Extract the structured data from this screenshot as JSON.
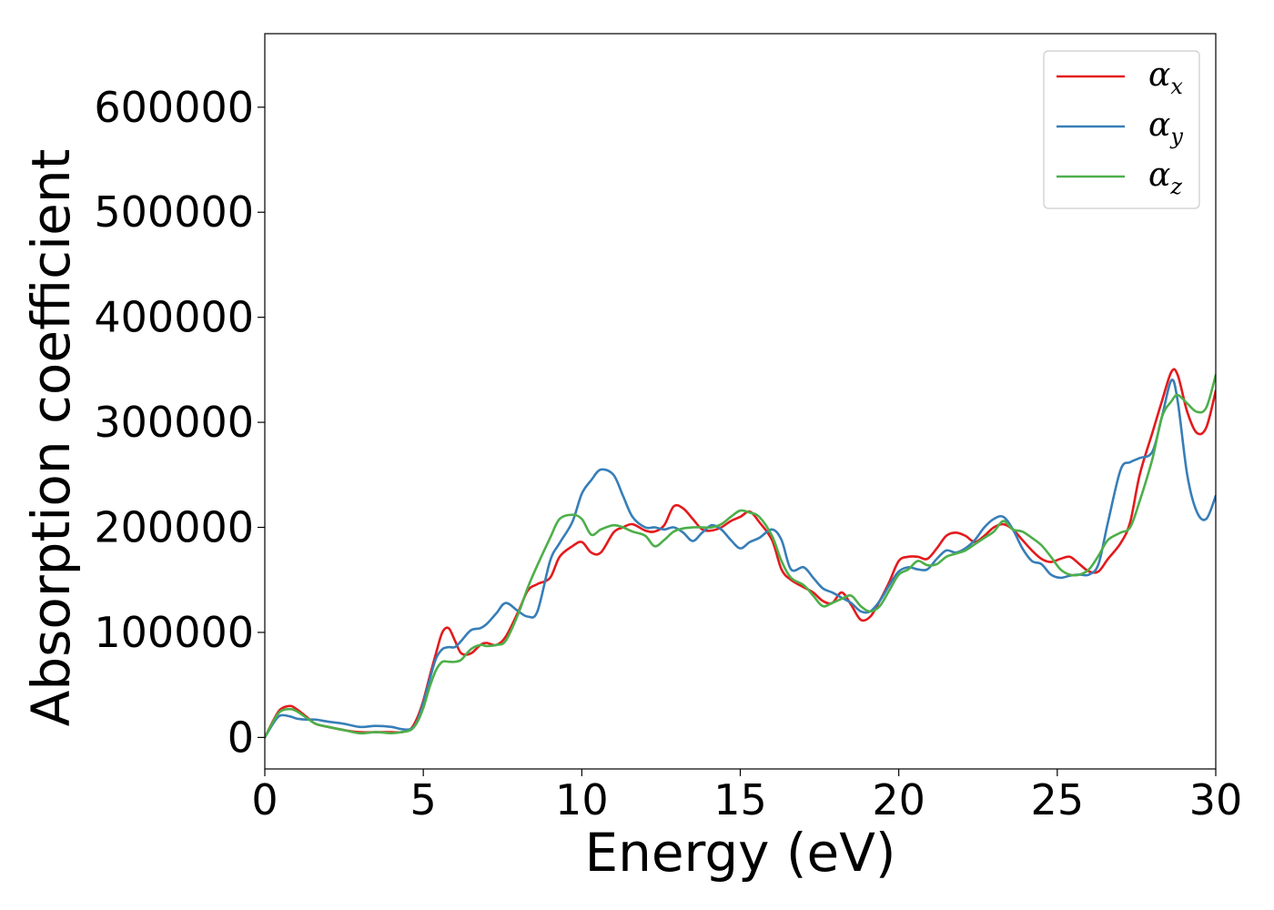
{
  "chart_data": {
    "type": "line",
    "title": "",
    "xlabel": "Energy (eV)",
    "ylabel": "Absorption coefficient",
    "xlim": [
      0,
      30
    ],
    "ylim": [
      -30000,
      670000
    ],
    "xticks": [
      0,
      5,
      10,
      15,
      20,
      25,
      30
    ],
    "yticks": [
      0,
      100000,
      200000,
      300000,
      400000,
      500000,
      600000
    ],
    "grid": false,
    "legend_position": "top-right",
    "series": [
      {
        "name": "αx",
        "symbol": "α",
        "subscript": "x",
        "color": "#e41a1c",
        "x": [
          0,
          0.3,
          0.5,
          0.8,
          1.0,
          1.3,
          1.6,
          2.0,
          2.5,
          3.0,
          3.5,
          4.0,
          4.3,
          4.6,
          4.8,
          5.0,
          5.2,
          5.4,
          5.6,
          5.8,
          6.0,
          6.2,
          6.5,
          6.8,
          7.0,
          7.3,
          7.6,
          8.0,
          8.3,
          8.6,
          9.0,
          9.3,
          9.7,
          10.0,
          10.3,
          10.6,
          11.0,
          11.3,
          11.6,
          12.0,
          12.3,
          12.6,
          12.9,
          13.2,
          13.5,
          13.8,
          14.1,
          14.4,
          14.7,
          15.0,
          15.3,
          15.6,
          16.0,
          16.3,
          16.6,
          17.0,
          17.3,
          17.6,
          17.9,
          18.2,
          18.5,
          18.8,
          19.1,
          19.4,
          19.7,
          20.0,
          20.3,
          20.6,
          20.9,
          21.2,
          21.5,
          21.8,
          22.1,
          22.4,
          22.7,
          23.0,
          23.3,
          23.6,
          23.9,
          24.2,
          24.5,
          24.8,
          25.1,
          25.4,
          25.7,
          26.0,
          26.3,
          26.6,
          27.0,
          27.3,
          27.6,
          28.0,
          28.3,
          28.6,
          28.8,
          29.1,
          29.4,
          29.7,
          30.0
        ],
        "y": [
          0,
          18000,
          27000,
          30000,
          27000,
          20000,
          13000,
          10000,
          7000,
          5000,
          5000,
          5000,
          5000,
          8000,
          18000,
          35000,
          58000,
          80000,
          100000,
          104000,
          92000,
          80000,
          80000,
          88000,
          90000,
          88000,
          96000,
          120000,
          140000,
          146000,
          152000,
          172000,
          182000,
          186000,
          176000,
          176000,
          195000,
          200000,
          203000,
          197000,
          196000,
          202000,
          220000,
          218000,
          208000,
          198000,
          197000,
          200000,
          206000,
          210000,
          215000,
          205000,
          188000,
          160000,
          150000,
          143000,
          138000,
          130000,
          128000,
          138000,
          126000,
          112000,
          115000,
          130000,
          148000,
          168000,
          172000,
          172000,
          170000,
          180000,
          192000,
          195000,
          192000,
          186000,
          192000,
          200000,
          203000,
          198000,
          188000,
          178000,
          170000,
          167000,
          170000,
          172000,
          165000,
          158000,
          158000,
          170000,
          185000,
          205000,
          250000,
          290000,
          320000,
          348000,
          345000,
          310000,
          290000,
          295000,
          330000
        ]
      },
      {
        "name": "αy",
        "symbol": "α",
        "subscript": "y",
        "color": "#377eb8",
        "x": [
          0,
          0.3,
          0.5,
          0.8,
          1.0,
          1.3,
          1.6,
          2.0,
          2.5,
          3.0,
          3.5,
          4.0,
          4.3,
          4.6,
          4.8,
          5.0,
          5.2,
          5.4,
          5.6,
          5.8,
          6.0,
          6.2,
          6.5,
          6.8,
          7.0,
          7.3,
          7.6,
          8.0,
          8.3,
          8.6,
          9.0,
          9.3,
          9.7,
          10.0,
          10.3,
          10.6,
          11.0,
          11.3,
          11.6,
          12.0,
          12.3,
          12.6,
          12.9,
          13.2,
          13.5,
          13.8,
          14.1,
          14.4,
          14.7,
          15.0,
          15.3,
          15.6,
          16.0,
          16.3,
          16.6,
          17.0,
          17.3,
          17.6,
          17.9,
          18.2,
          18.5,
          18.8,
          19.1,
          19.4,
          19.7,
          20.0,
          20.3,
          20.6,
          20.9,
          21.2,
          21.5,
          21.8,
          22.1,
          22.4,
          22.7,
          23.0,
          23.3,
          23.6,
          23.9,
          24.2,
          24.5,
          24.8,
          25.1,
          25.4,
          25.7,
          26.0,
          26.3,
          26.6,
          27.0,
          27.3,
          27.6,
          28.0,
          28.3,
          28.6,
          28.8,
          29.1,
          29.4,
          29.7,
          30.0
        ],
        "y": [
          0,
          15000,
          21000,
          20000,
          18000,
          17000,
          17000,
          15000,
          13000,
          10000,
          11000,
          10000,
          8000,
          8000,
          15000,
          33000,
          55000,
          75000,
          84000,
          86000,
          86000,
          92000,
          102000,
          104000,
          108000,
          118000,
          128000,
          120000,
          115000,
          120000,
          168000,
          185000,
          205000,
          232000,
          245000,
          255000,
          250000,
          230000,
          210000,
          200000,
          200000,
          198000,
          200000,
          195000,
          187000,
          195000,
          202000,
          198000,
          188000,
          180000,
          186000,
          190000,
          198000,
          188000,
          160000,
          162000,
          152000,
          142000,
          138000,
          133000,
          128000,
          120000,
          120000,
          130000,
          145000,
          158000,
          162000,
          160000,
          160000,
          170000,
          178000,
          176000,
          180000,
          188000,
          200000,
          208000,
          210000,
          198000,
          180000,
          168000,
          165000,
          155000,
          152000,
          154000,
          155000,
          155000,
          165000,
          205000,
          255000,
          262000,
          266000,
          272000,
          305000,
          340000,
          320000,
          250000,
          215000,
          208000,
          230000
        ]
      },
      {
        "name": "αz",
        "symbol": "α",
        "subscript": "z",
        "color": "#4daf4a",
        "x": [
          0,
          0.3,
          0.5,
          0.8,
          1.0,
          1.3,
          1.6,
          2.0,
          2.5,
          3.0,
          3.5,
          4.0,
          4.3,
          4.6,
          4.8,
          5.0,
          5.2,
          5.4,
          5.6,
          5.8,
          6.0,
          6.2,
          6.5,
          6.8,
          7.0,
          7.3,
          7.6,
          8.0,
          8.3,
          8.6,
          9.0,
          9.3,
          9.7,
          10.0,
          10.3,
          10.6,
          11.0,
          11.3,
          11.6,
          12.0,
          12.3,
          12.6,
          12.9,
          13.2,
          13.5,
          13.8,
          14.1,
          14.4,
          14.7,
          15.0,
          15.3,
          15.6,
          16.0,
          16.3,
          16.6,
          17.0,
          17.3,
          17.6,
          17.9,
          18.2,
          18.5,
          18.8,
          19.1,
          19.4,
          19.7,
          20.0,
          20.3,
          20.6,
          20.9,
          21.2,
          21.5,
          21.8,
          22.1,
          22.4,
          22.7,
          23.0,
          23.3,
          23.6,
          23.9,
          24.2,
          24.5,
          24.8,
          25.1,
          25.4,
          25.7,
          26.0,
          26.3,
          26.6,
          27.0,
          27.3,
          27.6,
          28.0,
          28.3,
          28.6,
          28.8,
          29.1,
          29.4,
          29.7,
          30.0
        ],
        "y": [
          0,
          17000,
          25000,
          27000,
          25000,
          19000,
          13000,
          10000,
          7000,
          4000,
          5000,
          4000,
          5000,
          7000,
          14000,
          28000,
          48000,
          64000,
          72000,
          72000,
          72000,
          74000,
          84000,
          88000,
          87000,
          88000,
          92000,
          118000,
          143000,
          164000,
          190000,
          208000,
          212000,
          208000,
          193000,
          198000,
          202000,
          200000,
          196000,
          192000,
          182000,
          188000,
          196000,
          199000,
          200000,
          200000,
          200000,
          203000,
          210000,
          216000,
          214000,
          210000,
          192000,
          168000,
          152000,
          145000,
          135000,
          125000,
          128000,
          132000,
          135000,
          125000,
          120000,
          125000,
          140000,
          155000,
          160000,
          168000,
          164000,
          165000,
          172000,
          175000,
          178000,
          184000,
          190000,
          196000,
          206000,
          198000,
          196000,
          190000,
          183000,
          172000,
          160000,
          155000,
          155000,
          160000,
          173000,
          188000,
          195000,
          200000,
          225000,
          265000,
          305000,
          320000,
          326000,
          318000,
          310000,
          314000,
          345000
        ]
      }
    ]
  }
}
